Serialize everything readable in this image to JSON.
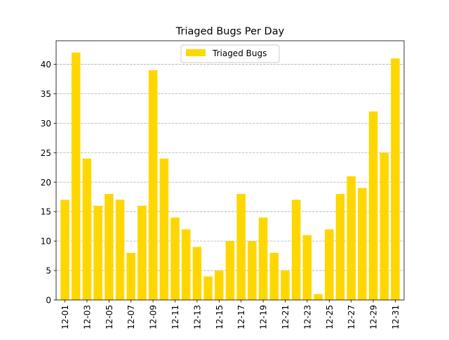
{
  "chart_data": {
    "type": "bar",
    "title": "Triaged Bugs Per Day",
    "xlabel": "",
    "ylabel": "",
    "categories": [
      "12-01",
      "12-02",
      "12-03",
      "12-04",
      "12-05",
      "12-06",
      "12-07",
      "12-08",
      "12-09",
      "12-10",
      "12-11",
      "12-12",
      "12-13",
      "12-14",
      "12-15",
      "12-16",
      "12-17",
      "12-18",
      "12-19",
      "12-20",
      "12-21",
      "12-22",
      "12-23",
      "12-24",
      "12-25",
      "12-26",
      "12-27",
      "12-28",
      "12-29",
      "12-30",
      "12-31"
    ],
    "tick_labels": [
      "12-01",
      "12-03",
      "12-05",
      "12-07",
      "12-09",
      "12-11",
      "12-13",
      "12-15",
      "12-17",
      "12-19",
      "12-21",
      "12-23",
      "12-25",
      "12-27",
      "12-29",
      "12-31"
    ],
    "series": [
      {
        "name": "Triaged Bugs",
        "color": "#ffd700",
        "values": [
          17,
          42,
          24,
          16,
          18,
          17,
          8,
          16,
          39,
          24,
          14,
          12,
          9,
          4,
          5,
          10,
          18,
          10,
          14,
          8,
          5,
          17,
          11,
          1,
          12,
          18,
          21,
          19,
          32,
          25,
          41
        ]
      }
    ],
    "ylim": [
      0,
      44
    ],
    "yticks": [
      0,
      5,
      10,
      15,
      20,
      25,
      30,
      35,
      40
    ],
    "grid": {
      "y": true,
      "x": false,
      "style": "dashed"
    },
    "legend": {
      "position": "top-center",
      "label": "Triaged Bugs"
    }
  }
}
